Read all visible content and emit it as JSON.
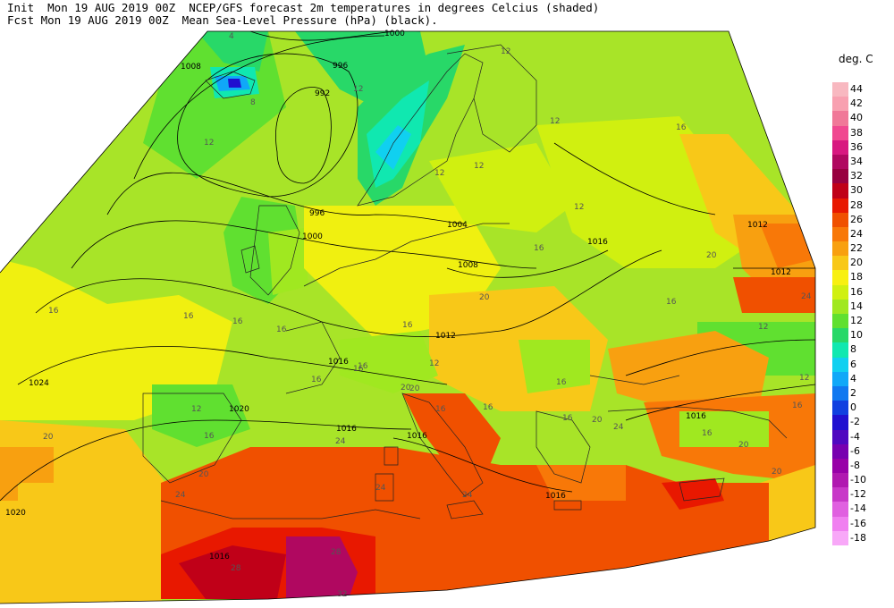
{
  "header": {
    "line1": "Init  Mon 19 AUG 2019 00Z  NCEP/GFS forecast 2m temperatures in degrees Celcius (shaded)",
    "line2": "Fcst Mon 19 AUG 2019 00Z  Mean Sea-Level Pressure (hPa) (black)."
  },
  "legend": {
    "title": "deg. C",
    "items": [
      {
        "label": "44",
        "color": "#f8b8c0"
      },
      {
        "label": "42",
        "color": "#f8a0b0"
      },
      {
        "label": "40",
        "color": "#f07898"
      },
      {
        "label": "38",
        "color": "#f04890"
      },
      {
        "label": "36",
        "color": "#d81880"
      },
      {
        "label": "34",
        "color": "#b00860"
      },
      {
        "label": "32",
        "color": "#980040"
      },
      {
        "label": "30",
        "color": "#c00018"
      },
      {
        "label": "28",
        "color": "#e81800"
      },
      {
        "label": "26",
        "color": "#f05000"
      },
      {
        "label": "24",
        "color": "#f87808"
      },
      {
        "label": "22",
        "color": "#f8a010"
      },
      {
        "label": "20",
        "color": "#f8c818"
      },
      {
        "label": "18",
        "color": "#f8f010"
      },
      {
        "label": "16",
        "color": "#d0f010"
      },
      {
        "label": "14",
        "color": "#a0e820"
      },
      {
        "label": "12",
        "color": "#60e030"
      },
      {
        "label": "10",
        "color": "#28d868"
      },
      {
        "label": "8",
        "color": "#10e8b0"
      },
      {
        "label": "6",
        "color": "#10d0f0"
      },
      {
        "label": "4",
        "color": "#10a8f8"
      },
      {
        "label": "2",
        "color": "#1078f0"
      },
      {
        "label": "0",
        "color": "#1040e0"
      },
      {
        "label": "-2",
        "color": "#2010d0"
      },
      {
        "label": "-4",
        "color": "#5008c0"
      },
      {
        "label": "-6",
        "color": "#7800b0"
      },
      {
        "label": "-8",
        "color": "#9800a8"
      },
      {
        "label": "-10",
        "color": "#b018b0"
      },
      {
        "label": "-12",
        "color": "#c838c8"
      },
      {
        "label": "-14",
        "color": "#e060e0"
      },
      {
        "label": "-16",
        "color": "#f080f0"
      },
      {
        "label": "-18",
        "color": "#f8a8f8"
      }
    ]
  },
  "isobar_labels": [
    "1000",
    "1008",
    "996",
    "992",
    "996",
    "1000",
    "1004",
    "1008",
    "1016",
    "1012",
    "1012",
    "1016",
    "1024",
    "1020",
    "1016",
    "1016",
    "1016",
    "1016",
    "1020",
    "1016",
    "1012"
  ],
  "temp_labels": [
    "4",
    "8",
    "12",
    "12",
    "12",
    "12",
    "12",
    "12",
    "16",
    "12",
    "16",
    "16",
    "16",
    "16",
    "16",
    "20",
    "20",
    "12",
    "16",
    "16",
    "16",
    "20",
    "24",
    "20",
    "20",
    "24",
    "24",
    "16",
    "16",
    "12",
    "12",
    "16",
    "20",
    "20",
    "24",
    "28",
    "28",
    "32",
    "24",
    "16",
    "12",
    "16",
    "20",
    "16",
    "16",
    "20",
    "24",
    "16",
    "16"
  ]
}
